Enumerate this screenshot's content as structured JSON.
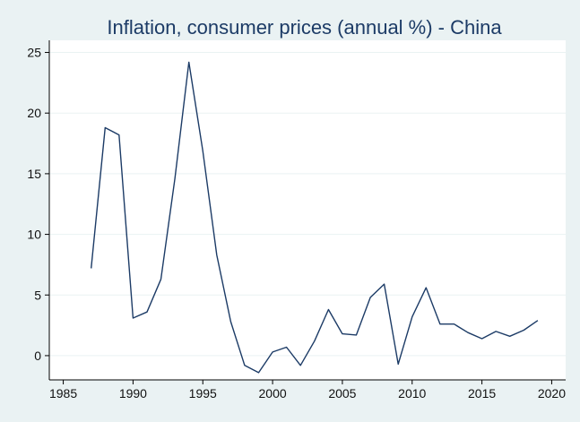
{
  "chart_data": {
    "type": "line",
    "title": "Inflation, consumer prices (annual %) - China",
    "xlabel": "",
    "ylabel": "",
    "xlim": [
      1984,
      2021
    ],
    "ylim": [
      -2,
      26
    ],
    "xticks": [
      1985,
      1990,
      1995,
      2000,
      2005,
      2010,
      2015,
      2020
    ],
    "yticks": [
      0,
      5,
      10,
      15,
      20,
      25
    ],
    "grid": "horizontal",
    "legend": "none",
    "colors": {
      "background": "#eaf2f3",
      "plot_area": "#ffffff",
      "grid": "#eaf2f3",
      "axis": "#000000",
      "line": "#1c3b66",
      "title": "#1c3b66"
    },
    "series": [
      {
        "x": [
          1987,
          1988,
          1989,
          1990,
          1991,
          1992,
          1993,
          1994,
          1995,
          1996,
          1997,
          1998,
          1999,
          2000,
          2001,
          2002,
          2003,
          2004,
          2005,
          2006,
          2007,
          2008,
          2009,
          2010,
          2011,
          2012,
          2013,
          2014,
          2015,
          2016,
          2017,
          2018,
          2019
        ],
        "values": [
          7.2,
          18.8,
          18.2,
          3.1,
          3.6,
          6.3,
          14.6,
          24.2,
          16.9,
          8.3,
          2.8,
          -0.8,
          -1.4,
          0.3,
          0.7,
          -0.8,
          1.2,
          3.8,
          1.8,
          1.7,
          4.8,
          5.9,
          -0.7,
          3.2,
          5.6,
          2.6,
          2.6,
          1.9,
          1.4,
          2.0,
          1.6,
          2.1,
          2.9
        ]
      }
    ]
  }
}
